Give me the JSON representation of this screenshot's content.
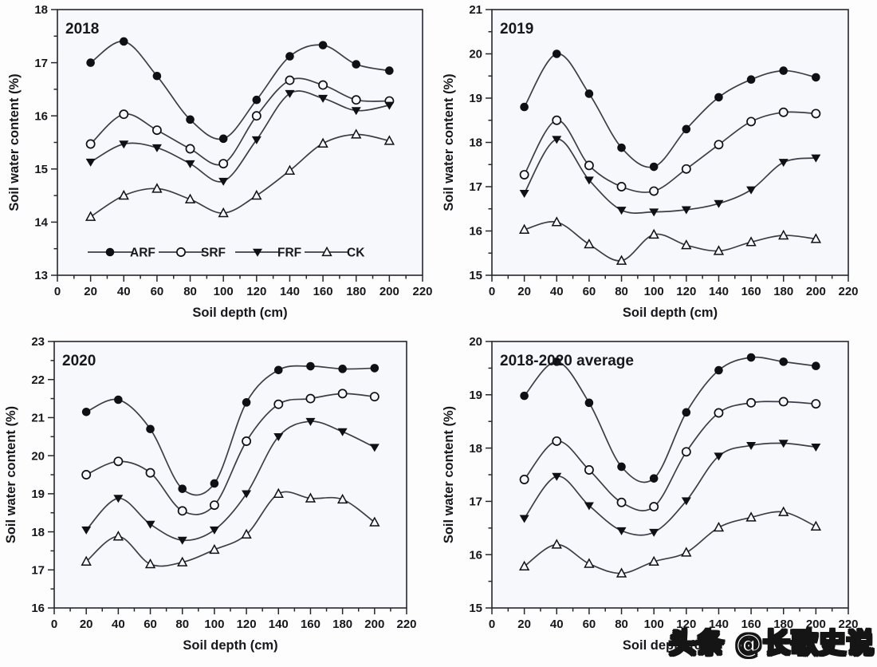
{
  "watermark": {
    "text": "头条 @长歌史说"
  },
  "style": {
    "line_color": "#3d3d47",
    "marker_color": "#101014",
    "plot_background": "#f7f8fc",
    "axis_color": "#26262e",
    "text_color": "#17171c"
  },
  "legend": {
    "position": "inside-bottom-of-2018-panel",
    "entries": [
      {
        "label": "ARF",
        "marker": "filled-circle"
      },
      {
        "label": "SRF",
        "marker": "open-circle"
      },
      {
        "label": "FRF",
        "marker": "filled-triangle-down"
      },
      {
        "label": "CK",
        "marker": "open-triangle-up"
      }
    ]
  },
  "chart_data": [
    {
      "type": "line",
      "title": "2018",
      "xlabel": "Soil depth (cm)",
      "ylabel": "Soil water content (%)",
      "x": [
        20,
        40,
        60,
        80,
        100,
        120,
        140,
        160,
        180,
        200
      ],
      "xlim": [
        0,
        220
      ],
      "xtick_step": 20,
      "xminor_step": 10,
      "ylim": [
        13,
        18
      ],
      "ytick_step": 1,
      "yminor_step": 0.5,
      "grid": false,
      "show_legend": true,
      "series": [
        {
          "name": "ARF",
          "marker": "filled-circle",
          "values": [
            17.0,
            17.4,
            16.75,
            15.93,
            15.57,
            16.3,
            17.12,
            17.33,
            16.97,
            16.85
          ]
        },
        {
          "name": "SRF",
          "marker": "open-circle",
          "values": [
            15.47,
            16.03,
            15.73,
            15.38,
            15.1,
            16.0,
            16.67,
            16.58,
            16.3,
            16.28
          ]
        },
        {
          "name": "FRF",
          "marker": "filled-triangle-down",
          "values": [
            15.13,
            15.47,
            15.4,
            15.1,
            14.77,
            15.55,
            16.42,
            16.33,
            16.1,
            16.2
          ]
        },
        {
          "name": "CK",
          "marker": "open-triangle-up",
          "values": [
            14.1,
            14.5,
            14.63,
            14.43,
            14.17,
            14.5,
            14.97,
            15.48,
            15.65,
            15.53
          ]
        }
      ]
    },
    {
      "type": "line",
      "title": "2019",
      "xlabel": "Soil depth (cm)",
      "ylabel": "Soil water content (%)",
      "x": [
        20,
        40,
        60,
        80,
        100,
        120,
        140,
        160,
        180,
        200
      ],
      "xlim": [
        0,
        220
      ],
      "xtick_step": 20,
      "xminor_step": 10,
      "ylim": [
        15,
        21
      ],
      "ytick_step": 1,
      "yminor_step": 0.5,
      "grid": false,
      "show_legend": false,
      "series": [
        {
          "name": "ARF",
          "marker": "filled-circle",
          "values": [
            18.8,
            20.0,
            19.1,
            17.88,
            17.45,
            18.3,
            19.02,
            19.42,
            19.62,
            19.47
          ]
        },
        {
          "name": "SRF",
          "marker": "open-circle",
          "values": [
            17.27,
            18.5,
            17.48,
            17.0,
            16.9,
            17.4,
            17.95,
            18.47,
            18.68,
            18.65
          ]
        },
        {
          "name": "FRF",
          "marker": "filled-triangle-down",
          "values": [
            16.85,
            18.07,
            17.15,
            16.47,
            16.43,
            16.48,
            16.62,
            16.93,
            17.55,
            17.65
          ]
        },
        {
          "name": "CK",
          "marker": "open-triangle-up",
          "values": [
            16.03,
            16.2,
            15.7,
            15.33,
            15.92,
            15.68,
            15.55,
            15.75,
            15.9,
            15.82
          ]
        }
      ]
    },
    {
      "type": "line",
      "title": "2020",
      "xlabel": "Soil depth (cm)",
      "ylabel": "Soil water content (%)",
      "x": [
        20,
        40,
        60,
        80,
        100,
        120,
        140,
        160,
        180,
        200
      ],
      "xlim": [
        0,
        220
      ],
      "xtick_step": 20,
      "xminor_step": 10,
      "ylim": [
        16,
        23
      ],
      "ytick_step": 1,
      "yminor_step": 0.5,
      "grid": false,
      "show_legend": false,
      "series": [
        {
          "name": "ARF",
          "marker": "filled-circle",
          "values": [
            21.15,
            21.47,
            20.7,
            19.13,
            19.27,
            21.4,
            22.25,
            22.35,
            22.28,
            22.3
          ]
        },
        {
          "name": "SRF",
          "marker": "open-circle",
          "values": [
            19.5,
            19.85,
            19.55,
            18.55,
            18.7,
            20.38,
            21.35,
            21.5,
            21.63,
            21.55
          ]
        },
        {
          "name": "FRF",
          "marker": "filled-triangle-down",
          "values": [
            18.05,
            18.88,
            18.2,
            17.78,
            18.05,
            19.0,
            20.5,
            20.9,
            20.63,
            20.22
          ]
        },
        {
          "name": "CK",
          "marker": "open-triangle-up",
          "values": [
            17.22,
            17.88,
            17.15,
            17.2,
            17.53,
            17.93,
            19.0,
            18.88,
            18.85,
            18.25
          ]
        }
      ]
    },
    {
      "type": "line",
      "title": "2018-2020 average",
      "xlabel": "Soil depth (cm)",
      "ylabel": "Soil water content (%)",
      "x": [
        20,
        40,
        60,
        80,
        100,
        120,
        140,
        160,
        180,
        200
      ],
      "xlim": [
        0,
        220
      ],
      "xtick_step": 20,
      "xminor_step": 10,
      "ylim": [
        15,
        20
      ],
      "ytick_step": 1,
      "yminor_step": 0.5,
      "grid": false,
      "show_legend": false,
      "series": [
        {
          "name": "ARF",
          "marker": "filled-circle",
          "values": [
            18.98,
            19.62,
            18.85,
            17.65,
            17.43,
            18.67,
            19.46,
            19.7,
            19.62,
            19.54
          ]
        },
        {
          "name": "SRF",
          "marker": "open-circle",
          "values": [
            17.41,
            18.13,
            17.59,
            16.98,
            16.9,
            17.93,
            18.66,
            18.85,
            18.87,
            18.83
          ]
        },
        {
          "name": "FRF",
          "marker": "filled-triangle-down",
          "values": [
            16.68,
            17.47,
            16.92,
            16.45,
            16.42,
            17.01,
            17.85,
            18.05,
            18.09,
            18.02
          ]
        },
        {
          "name": "CK",
          "marker": "open-triangle-up",
          "values": [
            15.78,
            16.19,
            15.83,
            15.65,
            15.87,
            16.04,
            16.51,
            16.7,
            16.8,
            16.53
          ]
        }
      ]
    }
  ]
}
